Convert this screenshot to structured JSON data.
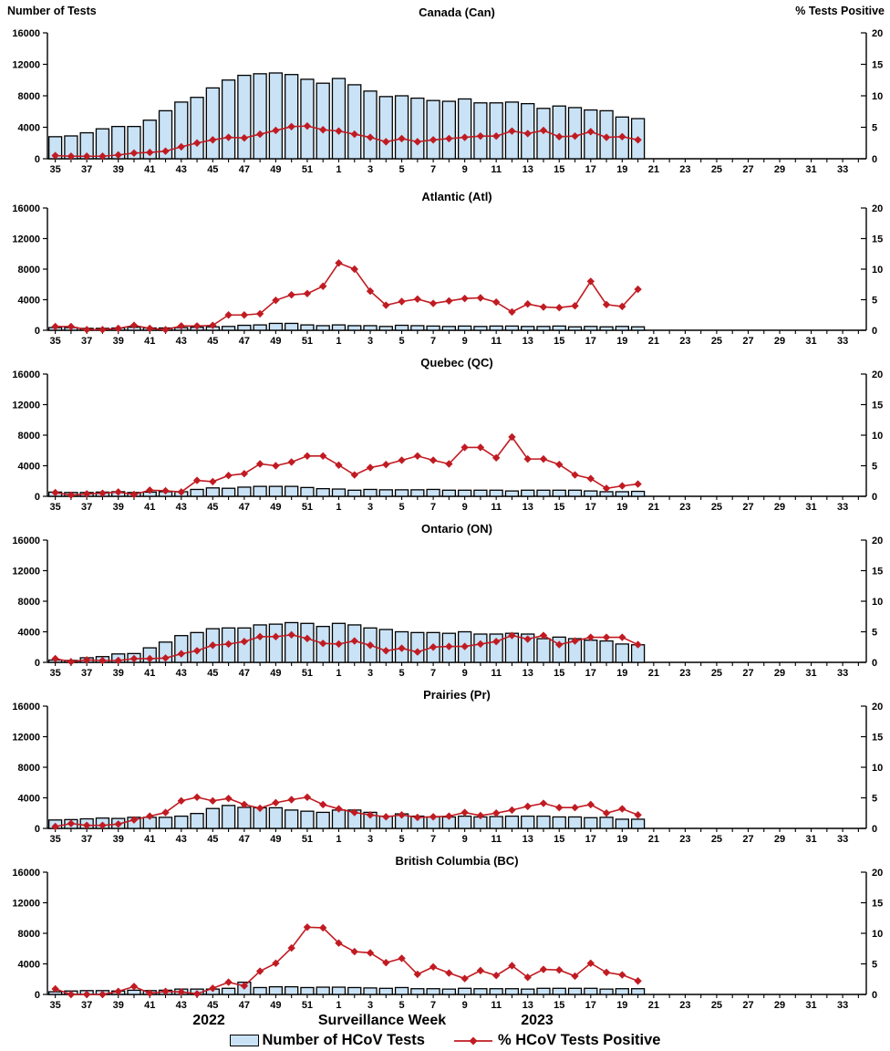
{
  "header": {
    "left_axis_title": "Number of Tests",
    "right_axis_title": "%  Tests Positive"
  },
  "x_axis": {
    "year_left": "2022",
    "label": "Surveillance Week",
    "year_right": "2023"
  },
  "legend": {
    "bars": "Number of HCoV Tests",
    "line": "% HCoV Tests Positive"
  },
  "colors": {
    "bar_fill": "#C9E2F6",
    "bar_stroke": "#000000",
    "line": "#C11B22",
    "text": "#000000",
    "background": "#FFFFFF"
  },
  "axis": {
    "weeks": [
      35,
      36,
      37,
      38,
      39,
      40,
      41,
      42,
      43,
      44,
      45,
      46,
      47,
      48,
      49,
      50,
      51,
      52,
      1,
      2,
      3,
      4,
      5,
      6,
      7,
      8,
      9,
      10,
      11,
      12,
      13,
      14,
      15,
      16,
      17,
      18,
      19,
      20,
      21,
      22,
      23,
      24,
      25,
      26,
      27,
      28,
      29,
      30,
      31,
      32,
      33,
      34
    ],
    "labeled_weeks": [
      35,
      37,
      39,
      41,
      43,
      45,
      47,
      49,
      51,
      1,
      3,
      5,
      7,
      9,
      11,
      13,
      15,
      17,
      19,
      21,
      23,
      25,
      27,
      29,
      31,
      33
    ],
    "left_ticks": [
      0,
      4000,
      8000,
      12000,
      16000
    ],
    "right_ticks": [
      0,
      5,
      10,
      15,
      20
    ],
    "ylim_left": [
      0,
      16000
    ],
    "ylim_right": [
      0,
      20
    ],
    "grid": false
  },
  "chart_data": [
    {
      "type": "bar+line",
      "title": "Canada (Can)",
      "bar_series": "Number of HCoV Tests",
      "line_series": "% HCoV Tests Positive",
      "tests": [
        2800,
        2900,
        3300,
        3800,
        4100,
        4100,
        4900,
        6100,
        7200,
        7800,
        9000,
        10000,
        10600,
        10800,
        10900,
        10700,
        10100,
        9600,
        10200,
        9400,
        8600,
        7900,
        8000,
        7700,
        7400,
        7300,
        7600,
        7100,
        7100,
        7200,
        7000,
        6400,
        6700,
        6500,
        6200,
        6100,
        5300,
        5100
      ],
      "pct_positive": [
        0.5,
        0.4,
        0.4,
        0.4,
        0.6,
        0.9,
        1.0,
        1.2,
        1.9,
        2.5,
        3.0,
        3.4,
        3.3,
        3.9,
        4.5,
        5.1,
        5.2,
        4.6,
        4.4,
        3.9,
        3.4,
        2.7,
        3.2,
        2.7,
        3.0,
        3.2,
        3.4,
        3.6,
        3.6,
        4.4,
        4.0,
        4.5,
        3.5,
        3.6,
        4.3,
        3.4,
        3.5,
        3.0
      ]
    },
    {
      "type": "bar+line",
      "title": "Atlantic (Atl)",
      "bar_series": "Number of HCoV Tests",
      "line_series": "% HCoV Tests Positive",
      "tests": [
        350,
        350,
        250,
        250,
        300,
        400,
        300,
        300,
        350,
        400,
        450,
        500,
        650,
        700,
        900,
        900,
        700,
        600,
        700,
        600,
        600,
        500,
        650,
        600,
        550,
        500,
        550,
        500,
        550,
        550,
        500,
        500,
        550,
        450,
        500,
        450,
        500,
        450
      ],
      "pct_positive": [
        0.6,
        0.6,
        0.1,
        0.1,
        0.3,
        0.8,
        0.3,
        0.1,
        0.7,
        0.7,
        0.8,
        2.5,
        2.5,
        2.7,
        4.9,
        5.8,
        6.0,
        7.2,
        11.0,
        10.0,
        6.4,
        4.1,
        4.7,
        5.1,
        4.4,
        4.8,
        5.2,
        5.3,
        4.6,
        3.0,
        4.3,
        3.8,
        3.7,
        4.0,
        8.0,
        4.2,
        3.9,
        6.7
      ]
    },
    {
      "type": "bar+line",
      "title": "Quebec (QC)",
      "bar_series": "Number of HCoV Tests",
      "line_series": "% HCoV Tests Positive",
      "tests": [
        550,
        500,
        500,
        550,
        600,
        500,
        550,
        600,
        600,
        900,
        1100,
        1050,
        1200,
        1300,
        1300,
        1300,
        1150,
        1000,
        950,
        800,
        900,
        850,
        850,
        850,
        900,
        800,
        800,
        800,
        800,
        700,
        800,
        800,
        800,
        800,
        700,
        600,
        600,
        650
      ],
      "pct_positive": [
        0.6,
        0.2,
        0.4,
        0.5,
        0.7,
        0.3,
        1.0,
        0.9,
        0.7,
        2.6,
        2.4,
        3.4,
        3.7,
        5.3,
        5.0,
        5.6,
        6.6,
        6.6,
        5.1,
        3.5,
        4.7,
        5.2,
        5.9,
        6.6,
        5.9,
        5.3,
        8.0,
        8.0,
        6.3,
        9.7,
        6.1,
        6.1,
        5.2,
        3.5,
        2.9,
        1.3,
        1.7,
        2.0
      ]
    },
    {
      "type": "bar+line",
      "title": "Ontario (ON)",
      "bar_series": "Number of HCoV Tests",
      "line_series": "% HCoV Tests Positive",
      "tests": [
        300,
        250,
        600,
        750,
        1100,
        1150,
        1900,
        2650,
        3500,
        3900,
        4400,
        4500,
        4500,
        4900,
        5000,
        5200,
        5100,
        4700,
        5100,
        4900,
        4500,
        4300,
        4000,
        3900,
        3900,
        3800,
        4000,
        3700,
        3700,
        3800,
        3700,
        3100,
        3300,
        3100,
        2900,
        2800,
        2400,
        2300
      ],
      "pct_positive": [
        0.6,
        0.1,
        0.4,
        0.3,
        0.3,
        0.6,
        0.6,
        0.7,
        1.4,
        1.9,
        2.8,
        3.0,
        3.4,
        4.2,
        4.2,
        4.5,
        3.9,
        3.1,
        3.0,
        3.5,
        2.8,
        1.9,
        2.3,
        1.7,
        2.5,
        2.6,
        2.6,
        3.0,
        3.4,
        4.4,
        3.8,
        4.4,
        2.9,
        3.5,
        4.1,
        4.1,
        4.1,
        2.9
      ]
    },
    {
      "type": "bar+line",
      "title": "Prairies (Pr)",
      "bar_series": "Number of HCoV Tests",
      "line_series": "% HCoV Tests Positive",
      "tests": [
        1100,
        1150,
        1250,
        1350,
        1300,
        1450,
        1450,
        1450,
        1600,
        1950,
        2600,
        3000,
        2750,
        2700,
        2700,
        2400,
        2250,
        2100,
        2400,
        2400,
        2100,
        1600,
        1900,
        1600,
        1500,
        1500,
        1600,
        1500,
        1550,
        1600,
        1600,
        1600,
        1500,
        1500,
        1400,
        1450,
        1200,
        1200
      ],
      "pct_positive": [
        0.3,
        0.8,
        0.5,
        0.5,
        0.7,
        1.4,
        2.0,
        2.6,
        4.5,
        5.1,
        4.5,
        4.9,
        3.9,
        3.3,
        4.2,
        4.7,
        5.1,
        3.9,
        3.2,
        2.6,
        2.2,
        1.9,
        2.2,
        1.8,
        1.9,
        2.0,
        2.6,
        2.1,
        2.5,
        3.0,
        3.6,
        4.1,
        3.4,
        3.4,
        3.9,
        2.5,
        3.2,
        2.2
      ]
    },
    {
      "type": "bar+line",
      "title": "British Columbia (BC)",
      "bar_series": "Number of HCoV Tests",
      "line_series": "% HCoV Tests Positive",
      "tests": [
        350,
        450,
        500,
        500,
        450,
        550,
        500,
        550,
        700,
        700,
        700,
        800,
        1600,
        900,
        1000,
        1000,
        900,
        950,
        950,
        900,
        850,
        800,
        900,
        750,
        750,
        700,
        800,
        750,
        750,
        750,
        700,
        800,
        800,
        800,
        800,
        700,
        750,
        750
      ],
      "pct_positive": [
        0.9,
        0.0,
        0.0,
        0.0,
        0.5,
        1.3,
        0.2,
        0.5,
        0.4,
        0.1,
        1.0,
        2.0,
        1.4,
        3.8,
        5.1,
        7.6,
        11.0,
        10.9,
        8.4,
        7.0,
        6.8,
        5.2,
        5.9,
        3.3,
        4.5,
        3.5,
        2.6,
        3.9,
        3.1,
        4.7,
        2.8,
        4.1,
        4.0,
        3.0,
        5.1,
        3.6,
        3.2,
        2.2
      ]
    }
  ]
}
